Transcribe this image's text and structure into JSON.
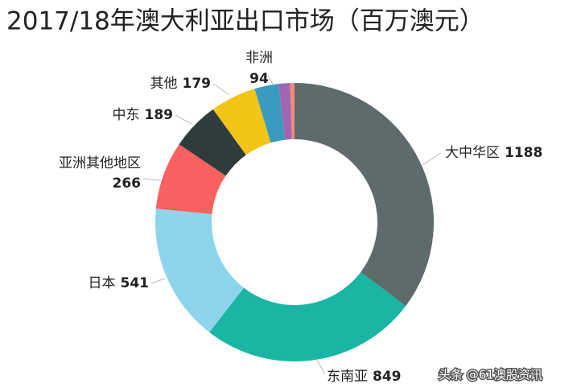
{
  "chart_data": {
    "type": "donut",
    "title": "2017/18年澳大利亚出口市场（百万澳元）",
    "categories": [
      "大中华区",
      "东南亚",
      "日本",
      "亚洲其他地区",
      "中东",
      "其他",
      "非洲",
      null,
      null
    ],
    "values": [
      1188,
      849,
      541,
      266,
      189,
      179,
      94,
      45,
      17
    ],
    "colors": [
      "#5f6b6b",
      "#1ab5a5",
      "#8dd5ea",
      "#f96161",
      "#2f3c3c",
      "#f2c416",
      "#3a9bc0",
      "#a066b0",
      "#f28a7a"
    ]
  },
  "watermark": "头条 @61澳股资讯"
}
